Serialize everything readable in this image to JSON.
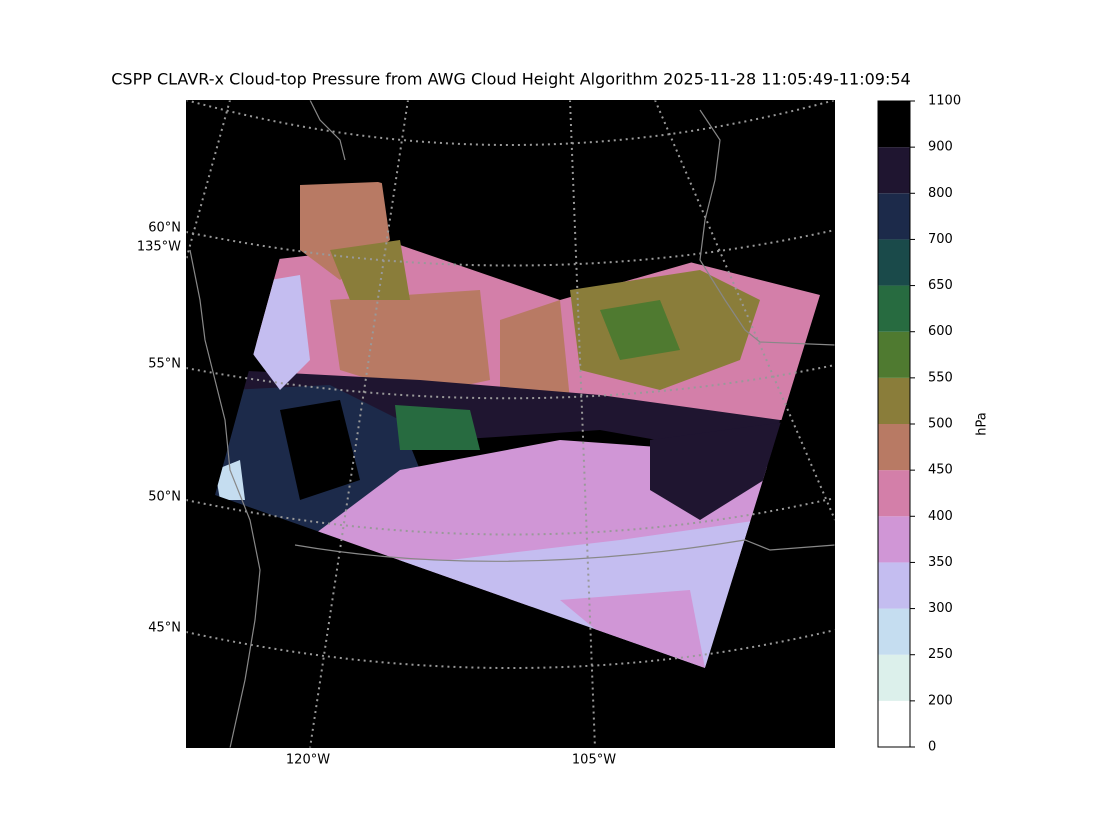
{
  "title": "CSPP CLAVR-x Cloud-top Pressure from AWG Cloud Height Algorithm 2025-11-28 11:05:49-11:09:54",
  "map": {
    "lat_labels": [
      "60°N",
      "55°N",
      "50°N",
      "45°N"
    ],
    "lon_labels": [
      "135°W",
      "120°W",
      "105°W"
    ]
  },
  "colorbar": {
    "label": "hPa",
    "boundaries": [
      0,
      200,
      250,
      300,
      350,
      400,
      450,
      500,
      550,
      600,
      650,
      700,
      800,
      900,
      1100
    ],
    "colors": [
      "#ffffff",
      "#dcf0eb",
      "#c5ddf0",
      "#c4bdf0",
      "#d096d6",
      "#d37fa9",
      "#b87a64",
      "#8a7d3a",
      "#4f7a30",
      "#276b40",
      "#1a4a4a",
      "#1c2a4a",
      "#1f1530",
      "#000000"
    ]
  }
}
